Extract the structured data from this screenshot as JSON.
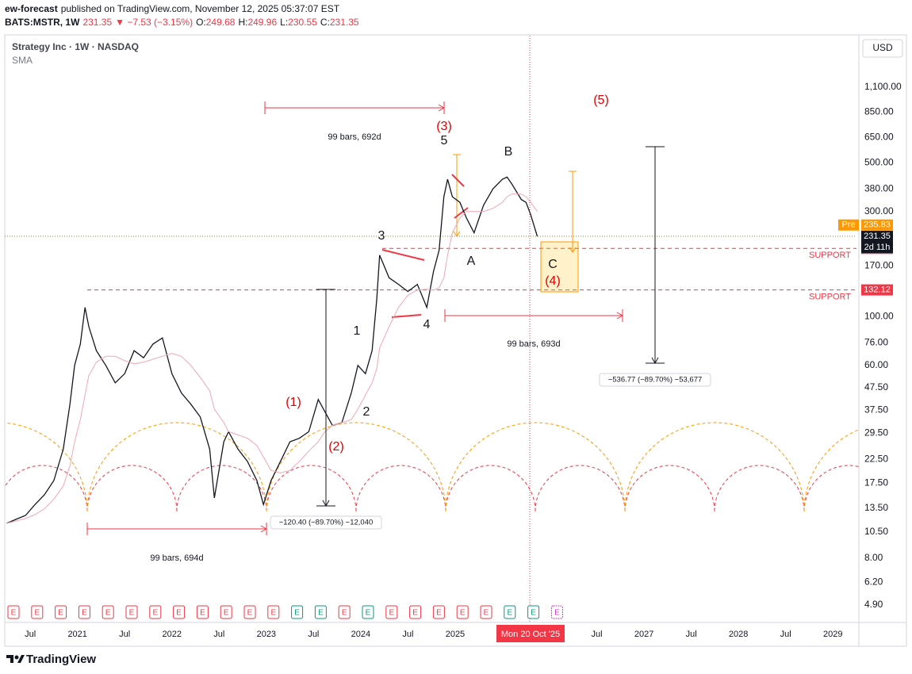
{
  "chart_data": {
    "type": "line",
    "header": {
      "author": "ew-forecast",
      "published": "published on TradingView.com, November 12, 2025 05:37:07 EST",
      "symbol": "BATS:MSTR, 1W",
      "last": "231.35",
      "change": "▼ −7.53 (−3.15%)",
      "ohlc": [
        {
          "key": "O:",
          "price": "249.68"
        },
        {
          "key": "H:",
          "price": "249.96"
        },
        {
          "key": "L:",
          "price": "230.55"
        },
        {
          "key": "C:",
          "price": "231.35"
        }
      ]
    },
    "title": "Strategy Inc · 1W · NASDAQ",
    "currency": "USD",
    "log_scale": true,
    "grid": false,
    "xlim": [
      2020.23,
      2029.25
    ],
    "xticks": [
      {
        "value": 2020.5,
        "label": "Jul"
      },
      2021,
      {
        "value": 2021.5,
        "label": "Jul"
      },
      2022,
      {
        "value": 2022.5,
        "label": "Jul"
      },
      2023,
      {
        "value": 2023.5,
        "label": "Jul"
      },
      2024,
      {
        "value": 2024.5,
        "label": "Jul"
      },
      2025,
      {
        "value": 2026.5,
        "label": "Jul"
      },
      2027,
      {
        "value": 2027.5,
        "label": "Jul"
      },
      2028,
      {
        "value": 2028.5,
        "label": "Jul"
      },
      2029
    ],
    "ylim": [
      4.08,
      1886
    ],
    "yticks": [
      {
        "value": 4.9,
        "label": "4.90"
      },
      {
        "value": 6.2,
        "label": "6.20"
      },
      {
        "value": 8,
        "label": "8.00"
      },
      {
        "value": 10.5,
        "label": "10.50"
      },
      {
        "value": 13.5,
        "label": "13.50"
      },
      {
        "value": 17.5,
        "label": "17.50"
      },
      {
        "value": 22.5,
        "label": "22.50"
      },
      {
        "value": 29.5,
        "label": "29.50"
      },
      {
        "value": 37.5,
        "label": "37.50"
      },
      {
        "value": 47.5,
        "label": "47.50"
      },
      {
        "value": 60,
        "label": "60.00"
      },
      {
        "value": 76,
        "label": "76.00"
      },
      {
        "value": 100,
        "label": "100.00"
      },
      {
        "value": 170,
        "label": "170.00"
      },
      {
        "value": 300,
        "label": "300.00"
      },
      {
        "value": 380,
        "label": "380.00"
      },
      {
        "value": 500,
        "label": "500.00"
      },
      {
        "value": 650,
        "label": "650.00"
      },
      {
        "value": 850,
        "label": "850.00"
      },
      {
        "value": 1100,
        "label": "1,100.00"
      }
    ],
    "x": [
      2020.25,
      2020.35,
      2020.45,
      2020.55,
      2020.65,
      2020.75,
      2020.85,
      2020.92,
      2020.97,
      2021.03,
      2021.08,
      2021.12,
      2021.2,
      2021.3,
      2021.4,
      2021.5,
      2021.6,
      2021.7,
      2021.8,
      2021.9,
      2022.0,
      2022.1,
      2022.2,
      2022.3,
      2022.4,
      2022.45,
      2022.55,
      2022.6,
      2022.7,
      2022.8,
      2022.9,
      2022.97,
      2023.05,
      2023.15,
      2023.25,
      2023.35,
      2023.45,
      2023.55,
      2023.62,
      2023.7,
      2023.8,
      2023.9,
      2023.97,
      2024.05,
      2024.12,
      2024.17,
      2024.2,
      2024.3,
      2024.4,
      2024.5,
      2024.6,
      2024.7,
      2024.77,
      2024.83,
      2024.88,
      2024.92,
      2024.97,
      2025.05,
      2025.12,
      2025.2,
      2025.3,
      2025.4,
      2025.5,
      2025.55,
      2025.6,
      2025.7,
      2025.75,
      2025.8,
      2025.87
    ],
    "series": [
      {
        "color": "#131722",
        "values": [
          11.5,
          12,
          12.5,
          14,
          15.5,
          18,
          25,
          40,
          60,
          75,
          110,
          90,
          70,
          60,
          50,
          55,
          70,
          65,
          75,
          80,
          55,
          45,
          40,
          35,
          25,
          15,
          27,
          30,
          25,
          22,
          18,
          14,
          18,
          22,
          27,
          28,
          30,
          42,
          37,
          32,
          33,
          45,
          60,
          55,
          70,
          120,
          190,
          150,
          140,
          130,
          140,
          110,
          160,
          200,
          350,
          420,
          350,
          330,
          280,
          240,
          320,
          380,
          420,
          430,
          400,
          340,
          330,
          290,
          231.35
        ]
      },
      {
        "name": "SMA",
        "color": "#f2a7b3",
        "values": [
          11.5,
          11.8,
          12.1,
          12.6,
          13.4,
          14.8,
          17,
          21,
          27,
          34,
          44,
          54,
          62,
          66,
          66,
          63,
          61,
          62,
          64,
          66,
          68,
          66,
          60,
          53,
          46,
          38,
          33,
          30,
          29,
          28,
          26,
          23,
          20,
          19.5,
          20,
          22,
          24.5,
          27,
          30,
          32,
          33,
          34,
          38,
          44,
          50,
          58,
          72,
          90,
          110,
          125,
          132,
          133,
          132,
          135,
          150,
          190,
          240,
          280,
          300,
          300,
          300,
          310,
          330,
          350,
          360,
          360,
          350,
          330,
          300
        ]
      }
    ],
    "price_tags": {
      "pre_label": "Pre",
      "pre": 235.83,
      "last": 231.35,
      "countdown": "2d 11h"
    },
    "support": {
      "label": "SUPPORT",
      "levels": [
        203.93,
        132.12
      ]
    },
    "crosshair_label": "Mon 20 Oct '25",
    "wave_labels": [
      "(1)",
      "(2)",
      "(3)",
      "(4)",
      "(5)",
      "1",
      "2",
      "3",
      "4",
      "5",
      "A",
      "B",
      "C"
    ],
    "ranges": [
      "99 bars, 692d",
      "99 bars, 693d",
      "99 bars, 694d"
    ],
    "measures": [
      "−120.40 (−89.70%) −12,040",
      "−536.77 (−89.70%) −53,677"
    ],
    "earnings_icon": "E",
    "brand": "TradingView"
  }
}
